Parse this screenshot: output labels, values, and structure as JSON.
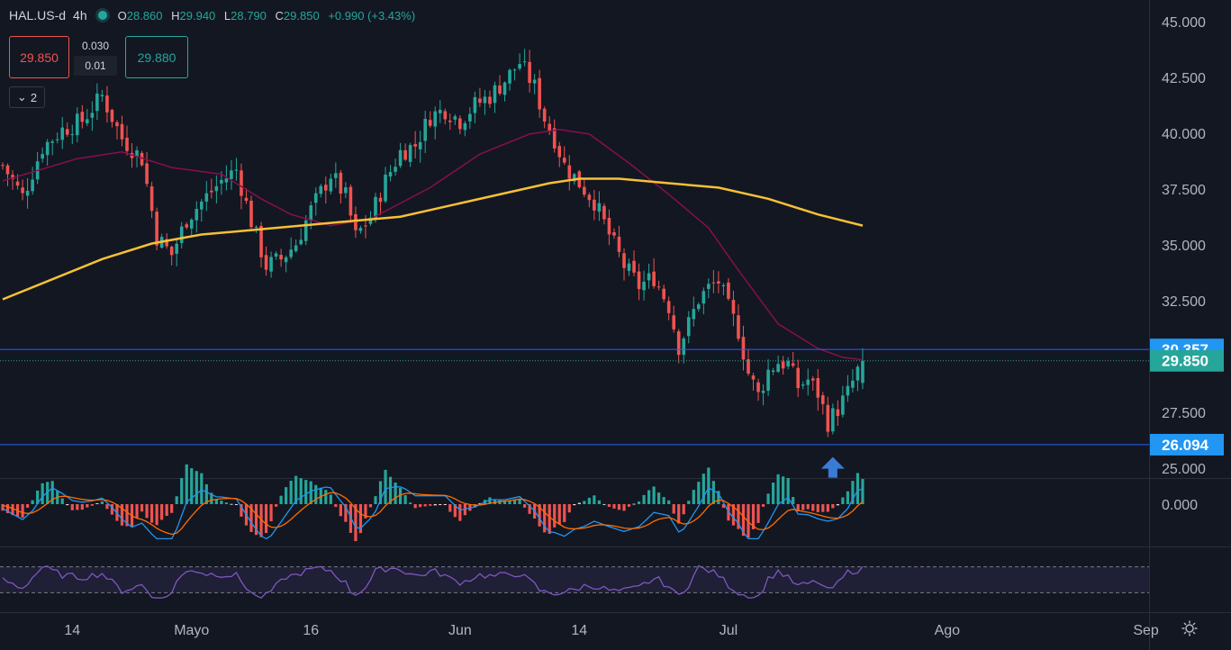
{
  "header": {
    "symbol": "HAL.US-d",
    "interval": "4h",
    "open_label": "O",
    "open": "28.860",
    "high_label": "H",
    "high": "29.940",
    "low_label": "L",
    "low": "28.790",
    "close_label": "C",
    "close": "29.850",
    "change": "+0.990 (+3.43%)"
  },
  "trade": {
    "sell": "29.850",
    "spread_top": "0.030",
    "spread_bottom": "0.01",
    "buy": "29.880"
  },
  "collapse_count": "2",
  "colors": {
    "up": "#26a69a",
    "down": "#ef5350",
    "ma_fast": "#880e4f",
    "ma_slow": "#f6c134",
    "level": "#2962ff",
    "macd": "#2196f3",
    "signal": "#ff6d00",
    "rsi": "#7e57c2"
  },
  "chart_data": {
    "type": "candlestick",
    "ylim": [
      24.6,
      46.0
    ],
    "y_ticks": [
      "45.000",
      "42.500",
      "40.000",
      "37.500",
      "35.000",
      "32.500",
      "27.500",
      "25.000"
    ],
    "x_labels": [
      {
        "label": "14",
        "t": 14
      },
      {
        "label": "Mayo",
        "t": 38
      },
      {
        "label": "16",
        "t": 62
      },
      {
        "label": "Jun",
        "t": 92
      },
      {
        "label": "14",
        "t": 116
      },
      {
        "label": "Jul",
        "t": 146
      },
      {
        "label": "Ago",
        "t": 190
      },
      {
        "label": "Sep",
        "t": 230
      }
    ],
    "levels": [
      {
        "value": 30.357,
        "label": "30.357"
      },
      {
        "value": 26.094,
        "label": "26.094"
      }
    ],
    "last_price": {
      "value": 29.85,
      "label": "29.850"
    },
    "close_path": [
      [
        0,
        38.6
      ],
      [
        4,
        37.2
      ],
      [
        8,
        39.4
      ],
      [
        12,
        40.2
      ],
      [
        16,
        40.6
      ],
      [
        20,
        41.7
      ],
      [
        24,
        39.8
      ],
      [
        28,
        38.9
      ],
      [
        31,
        35.4
      ],
      [
        34,
        34.6
      ],
      [
        37,
        36.2
      ],
      [
        41,
        37.2
      ],
      [
        44,
        37.9
      ],
      [
        47,
        38.4
      ],
      [
        50,
        36.1
      ],
      [
        53,
        34.1
      ],
      [
        56,
        34.4
      ],
      [
        59,
        35.1
      ],
      [
        62,
        36.6
      ],
      [
        66,
        38.2
      ],
      [
        69,
        37.2
      ],
      [
        71,
        35.4
      ],
      [
        74,
        36.3
      ],
      [
        77,
        37.9
      ],
      [
        80,
        39.2
      ],
      [
        83,
        39.5
      ],
      [
        86,
        40.8
      ],
      [
        89,
        41.1
      ],
      [
        92,
        40.6
      ],
      [
        95,
        41.3
      ],
      [
        98,
        41.7
      ],
      [
        101,
        42.4
      ],
      [
        104,
        43.2
      ],
      [
        107,
        42.1
      ],
      [
        109,
        40.7
      ],
      [
        111,
        39.8
      ],
      [
        113,
        38.6
      ],
      [
        116,
        37.8
      ],
      [
        119,
        37.0
      ],
      [
        122,
        35.5
      ],
      [
        125,
        34.1
      ],
      [
        128,
        33.2
      ],
      [
        131,
        33.6
      ],
      [
        134,
        32.3
      ],
      [
        136,
        30.5
      ],
      [
        138,
        31.5
      ],
      [
        140,
        32.6
      ],
      [
        142,
        33.1
      ],
      [
        144,
        33.4
      ],
      [
        146,
        32.2
      ],
      [
        148,
        31.2
      ],
      [
        150,
        29.3
      ],
      [
        152,
        28.3
      ],
      [
        154,
        29.4
      ],
      [
        156,
        29.8
      ],
      [
        158,
        29.7
      ],
      [
        160,
        28.7
      ],
      [
        162,
        29.0
      ],
      [
        164,
        28.4
      ],
      [
        166,
        27.1
      ],
      [
        168,
        27.7
      ],
      [
        170,
        28.4
      ],
      [
        172,
        29.4
      ],
      [
        173,
        29.85
      ]
    ],
    "ma_fast": [
      [
        0,
        37.9
      ],
      [
        15,
        38.9
      ],
      [
        24,
        39.2
      ],
      [
        34,
        38.5
      ],
      [
        44,
        38.2
      ],
      [
        52,
        37.1
      ],
      [
        58,
        36.4
      ],
      [
        66,
        35.9
      ],
      [
        74,
        36.2
      ],
      [
        86,
        37.6
      ],
      [
        96,
        39.1
      ],
      [
        106,
        40.0
      ],
      [
        112,
        40.2
      ],
      [
        118,
        40.0
      ],
      [
        126,
        38.7
      ],
      [
        134,
        37.3
      ],
      [
        142,
        35.8
      ],
      [
        148,
        33.9
      ],
      [
        156,
        31.5
      ],
      [
        164,
        30.4
      ],
      [
        169,
        30.0
      ],
      [
        173,
        29.9
      ]
    ],
    "ma_slow": [
      [
        0,
        32.6
      ],
      [
        10,
        33.5
      ],
      [
        20,
        34.4
      ],
      [
        30,
        35.1
      ],
      [
        40,
        35.5
      ],
      [
        50,
        35.7
      ],
      [
        60,
        35.9
      ],
      [
        70,
        36.1
      ],
      [
        80,
        36.3
      ],
      [
        90,
        36.8
      ],
      [
        100,
        37.3
      ],
      [
        110,
        37.8
      ],
      [
        116,
        38.0
      ],
      [
        124,
        38.0
      ],
      [
        134,
        37.8
      ],
      [
        144,
        37.6
      ],
      [
        154,
        37.1
      ],
      [
        164,
        36.4
      ],
      [
        173,
        35.9
      ]
    ],
    "marker": {
      "t": 167,
      "value": 25.1,
      "glyph": "up-arrow"
    },
    "macd": {
      "zero_label": "0.000"
    },
    "rsi": {
      "upper": 70,
      "lower": 30
    }
  }
}
